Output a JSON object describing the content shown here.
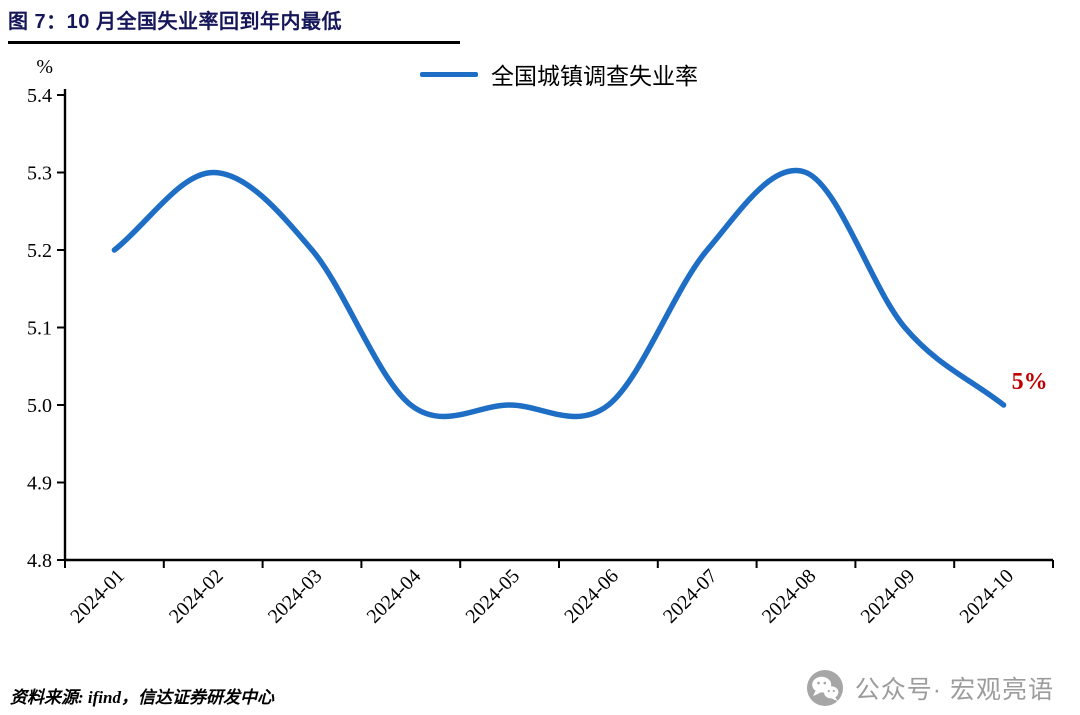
{
  "header": {
    "title": "图 7：10 月全国失业率回到年内最低"
  },
  "chart_data": {
    "type": "line",
    "smooth": true,
    "categories": [
      "2024-01",
      "2024-02",
      "2024-03",
      "2024-04",
      "2024-05",
      "2024-06",
      "2024-07",
      "2024-08",
      "2024-09",
      "2024-10"
    ],
    "series": [
      {
        "name": "全国城镇调查失业率",
        "color": "#1e6ec6",
        "values": [
          5.2,
          5.3,
          5.2,
          5.0,
          5.0,
          5.0,
          5.2,
          5.3,
          5.1,
          5.0
        ]
      }
    ],
    "title": "",
    "xlabel": "",
    "ylabel": "%",
    "ylim": [
      4.8,
      5.4
    ],
    "ytick_step": 0.1,
    "yticks": [
      "5.4",
      "5.3",
      "5.2",
      "5.1",
      "5.0",
      "4.9",
      "4.8"
    ],
    "grid": false,
    "legend_position": "top-center",
    "annotation": {
      "text": "5%",
      "color": "#c00000",
      "attach": "last-point"
    }
  },
  "footer": {
    "source": "资料来源: ifind，信达证券研发中心"
  },
  "watermark": {
    "icon": "wechat-icon",
    "label": "公众号· 宏观亮语"
  },
  "colors": {
    "line": "#1e6ec6",
    "annotation": "#c00000",
    "axis": "#000000",
    "title": "#16165a",
    "watermark_gray": "#9c9c9c"
  }
}
